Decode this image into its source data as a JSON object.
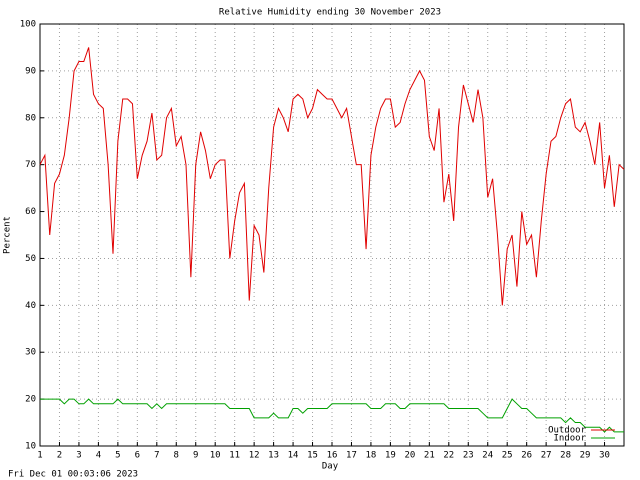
{
  "chart_data": {
    "type": "line",
    "title": "Relative Humidity ending 30 November 2023",
    "x_label": "Day",
    "y_label": "Percent",
    "footer": "Fri Dec 01 00:03:06 2023",
    "x": [
      1,
      1.25,
      1.5,
      1.75,
      2,
      2.25,
      2.5,
      2.75,
      3,
      3.25,
      3.5,
      3.75,
      4,
      4.25,
      4.5,
      4.75,
      5,
      5.25,
      5.5,
      5.75,
      6,
      6.25,
      6.5,
      6.75,
      7,
      7.25,
      7.5,
      7.75,
      8,
      8.25,
      8.5,
      8.75,
      9,
      9.25,
      9.5,
      9.75,
      10,
      10.25,
      10.5,
      10.75,
      11,
      11.25,
      11.5,
      11.75,
      12,
      12.25,
      12.5,
      12.75,
      13,
      13.25,
      13.5,
      13.75,
      14,
      14.25,
      14.5,
      14.75,
      15,
      15.25,
      15.5,
      15.75,
      16,
      16.25,
      16.5,
      16.75,
      17,
      17.25,
      17.5,
      17.75,
      18,
      18.25,
      18.5,
      18.75,
      19,
      19.25,
      19.5,
      19.75,
      20,
      20.25,
      20.5,
      20.75,
      21,
      21.25,
      21.5,
      21.75,
      22,
      22.25,
      22.5,
      22.75,
      23,
      23.25,
      23.5,
      23.75,
      24,
      24.25,
      24.5,
      24.75,
      25,
      25.25,
      25.5,
      25.75,
      26,
      26.25,
      26.5,
      26.75,
      27,
      27.25,
      27.5,
      27.75,
      28,
      28.25,
      28.5,
      28.75,
      29,
      29.25,
      29.5,
      29.75,
      30,
      30.25,
      30.5,
      30.75,
      31
    ],
    "series": [
      {
        "name": "Outdoor",
        "color": "#e00000",
        "values": [
          70,
          72,
          55,
          66,
          68,
          72,
          80,
          90,
          92,
          92,
          95,
          85,
          83,
          82,
          70,
          51,
          75,
          84,
          84,
          83,
          67,
          72,
          75,
          81,
          71,
          72,
          80,
          82,
          74,
          76,
          70,
          46,
          70,
          77,
          73,
          67,
          70,
          71,
          71,
          50,
          58,
          64,
          66,
          41,
          57,
          55,
          47,
          65,
          78,
          82,
          80,
          77,
          84,
          85,
          84,
          80,
          82,
          86,
          85,
          84,
          84,
          82,
          80,
          82,
          76,
          70,
          70,
          52,
          72,
          78,
          82,
          84,
          84,
          78,
          79,
          83,
          86,
          88,
          90,
          88,
          76,
          73,
          82,
          62,
          68,
          58,
          78,
          87,
          83,
          79,
          86,
          80,
          63,
          67,
          55,
          40,
          52,
          55,
          44,
          60,
          53,
          55,
          46,
          58,
          68,
          75,
          76,
          80,
          83,
          84,
          78,
          77,
          79,
          75,
          70,
          79,
          65,
          72,
          61,
          70,
          69
        ]
      },
      {
        "name": "Indoor",
        "color": "#00a000",
        "values": [
          20,
          20,
          20,
          20,
          20,
          19,
          20,
          20,
          19,
          19,
          20,
          19,
          19,
          19,
          19,
          19,
          20,
          19,
          19,
          19,
          19,
          19,
          19,
          18,
          19,
          18,
          19,
          19,
          19,
          19,
          19,
          19,
          19,
          19,
          19,
          19,
          19,
          19,
          19,
          18,
          18,
          18,
          18,
          18,
          16,
          16,
          16,
          16,
          17,
          16,
          16,
          16,
          18,
          18,
          17,
          18,
          18,
          18,
          18,
          18,
          19,
          19,
          19,
          19,
          19,
          19,
          19,
          19,
          18,
          18,
          18,
          19,
          19,
          19,
          18,
          18,
          19,
          19,
          19,
          19,
          19,
          19,
          19,
          19,
          18,
          18,
          18,
          18,
          18,
          18,
          18,
          17,
          16,
          16,
          16,
          16,
          18,
          20,
          19,
          18,
          18,
          17,
          16,
          16,
          16,
          16,
          16,
          16,
          15,
          16,
          15,
          15,
          14,
          14,
          14,
          14,
          13,
          14,
          13,
          13,
          13
        ]
      }
    ],
    "xlim": [
      1,
      31
    ],
    "ylim": [
      10,
      100
    ],
    "xticks": [
      1,
      2,
      3,
      4,
      5,
      6,
      7,
      8,
      9,
      10,
      11,
      12,
      13,
      14,
      15,
      16,
      17,
      18,
      19,
      20,
      21,
      22,
      23,
      24,
      25,
      26,
      27,
      28,
      29,
      30
    ],
    "yticks": [
      10,
      20,
      30,
      40,
      50,
      60,
      70,
      80,
      90,
      100
    ],
    "grid": true,
    "legend": "lower right"
  }
}
